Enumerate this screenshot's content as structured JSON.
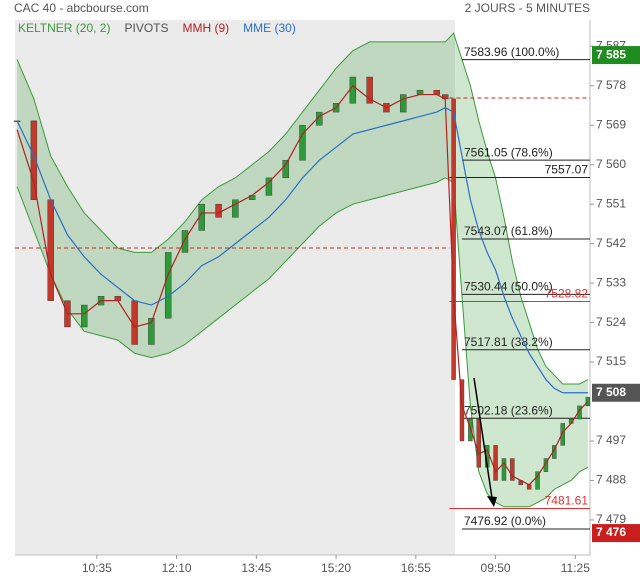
{
  "chart_data": {
    "type": "candlestick",
    "title": "CAC 40 - abcbourse.com",
    "subtitle": "2 JOURS - 5 MINUTES",
    "x": [
      0,
      4,
      8,
      12,
      16,
      20,
      24,
      28,
      32,
      36,
      40,
      44,
      48,
      52,
      56,
      60,
      64,
      68,
      72,
      76,
      80,
      84,
      88,
      92,
      96,
      100,
      102,
      104,
      106,
      108,
      110,
      112,
      114,
      116,
      118,
      120,
      122,
      124,
      126,
      128,
      130,
      132,
      134,
      136
    ],
    "xlim": [
      -0.5,
      136.5
    ],
    "xticks": [
      {
        "value": 19,
        "label": "10:35"
      },
      {
        "value": 38,
        "label": "12:10"
      },
      {
        "value": 57,
        "label": "13:45"
      },
      {
        "value": 76,
        "label": "15:20"
      },
      {
        "value": 95,
        "label": "16:55"
      },
      {
        "value": 114,
        "label": "09:50"
      },
      {
        "value": 133,
        "label": "11:25"
      }
    ],
    "ylim": [
      7471,
      7593
    ],
    "yticks": [
      {
        "value": 7587,
        "label": "7 587"
      },
      {
        "value": 7578,
        "label": "7 578"
      },
      {
        "value": 7569,
        "label": "7 569"
      },
      {
        "value": 7560,
        "label": "7 560"
      },
      {
        "value": 7551,
        "label": "7 551"
      },
      {
        "value": 7542,
        "label": "7 542"
      },
      {
        "value": 7533,
        "label": "7 533"
      },
      {
        "value": 7524,
        "label": "7 524"
      },
      {
        "value": 7515,
        "label": "7 515"
      },
      {
        "value": 7497,
        "label": "7 497"
      },
      {
        "value": 7488,
        "label": "7 488"
      },
      {
        "value": 7479,
        "label": "7 479"
      }
    ],
    "session_break": 103,
    "candles": {
      "up_color": "#2f9a3a",
      "down_color": "#c0392b",
      "values": [
        7570,
        7552,
        7529,
        7523,
        7528,
        7530,
        7529,
        7519,
        7525,
        7540,
        7545,
        7551,
        7548,
        7552,
        7553,
        7557,
        7561,
        7569,
        7572,
        7574,
        7580,
        7574,
        7572,
        7576,
        7577,
        7576,
        7575,
        7511,
        7497,
        7502,
        7491,
        7496,
        7488,
        7493,
        7488,
        7487,
        7486,
        7490,
        7493,
        7496,
        7501,
        7502,
        7505,
        7507
      ]
    },
    "keltner": {
      "name": "KELTNER (20, 2)",
      "color": "#3c9a3c",
      "fill": "rgba(80,170,80,0.28)",
      "upper": [
        7584,
        7575,
        7562,
        7555,
        7549,
        7545,
        7541,
        7540,
        7540,
        7543,
        7547,
        7552,
        7555,
        7557,
        7560,
        7563,
        7567,
        7572,
        7577,
        7582,
        7586,
        7588,
        7588,
        7588,
        7588,
        7588,
        7588,
        7590,
        7584,
        7578,
        7570,
        7563,
        7557,
        7548,
        7538,
        7530,
        7524,
        7518,
        7514,
        7512,
        7510,
        7510,
        7510,
        7511
      ],
      "lower": [
        7555,
        7545,
        7535,
        7527,
        7522,
        7521,
        7520,
        7517,
        7516,
        7517,
        7519,
        7522,
        7525,
        7528,
        7531,
        7534,
        7538,
        7542,
        7546,
        7549,
        7551,
        7552,
        7553,
        7554,
        7555,
        7556,
        7557,
        7556,
        7530,
        7505,
        7490,
        7485,
        7483,
        7482,
        7482,
        7482,
        7482,
        7483,
        7484,
        7486,
        7487,
        7488,
        7490,
        7491
      ]
    },
    "pivots": {
      "name": "PIVOTS",
      "color": "#d22",
      "levels": [
        {
          "value": 7541,
          "from": -0.5,
          "to": 103
        },
        {
          "value": 7575.2,
          "from": 103,
          "to": 136.5
        }
      ]
    },
    "series": [
      {
        "name": "MMH (9)",
        "color": "#b22222",
        "values": [
          7568,
          7556,
          7535,
          7526,
          7526,
          7529,
          7529,
          7523,
          7524,
          7535,
          7543,
          7549,
          7549,
          7551,
          7553,
          7556,
          7560,
          7567,
          7571,
          7573,
          7578,
          7575,
          7573,
          7575,
          7576,
          7576,
          7575,
          7530,
          7505,
          7500,
          7494,
          7495,
          7490,
          7492,
          7489,
          7488,
          7487,
          7489,
          7492,
          7495,
          7499,
          7501,
          7504,
          7506
        ]
      },
      {
        "name": "MME (30)",
        "color": "#2a6fc9",
        "values": [
          7570,
          7562,
          7552,
          7544,
          7539,
          7535,
          7532,
          7529,
          7528,
          7530,
          7533,
          7537,
          7539,
          7542,
          7545,
          7548,
          7552,
          7557,
          7561,
          7564,
          7567,
          7568,
          7569,
          7570,
          7571,
          7572,
          7573,
          7572,
          7562,
          7552,
          7545,
          7540,
          7536,
          7530,
          7525,
          7521,
          7517,
          7514,
          7511,
          7509,
          7508,
          7508,
          7508,
          7508
        ]
      }
    ],
    "fibonacci": [
      {
        "value": 7583.96,
        "label": "7583.96 (100.0%)"
      },
      {
        "value": 7561.05,
        "label": "7561.05 (78.6%)"
      },
      {
        "value": 7543.07,
        "label": "7543.07 (61.8%)"
      },
      {
        "value": 7530.44,
        "label": "7530.44 (50.0%)"
      },
      {
        "value": 7517.81,
        "label": "7517.81 (38.2%)"
      },
      {
        "value": 7502.18,
        "label": "7502.18 (23.6%)"
      },
      {
        "value": 7476.92,
        "label": "7476.92 (0.0%)"
      }
    ],
    "fib_from": 106,
    "levels": [
      {
        "value": 7557.07,
        "color": "#222"
      },
      {
        "value": 7528.82,
        "color": "#e03030"
      },
      {
        "value": 7481.61,
        "color": "#e03030"
      }
    ],
    "badges": [
      {
        "value": 7585,
        "label": "7 585",
        "color": "#1e8c1e"
      },
      {
        "value": 7508,
        "label": "7 508",
        "color": "#555"
      },
      {
        "value": 7476,
        "label": "7 476",
        "color": "#c81e1e"
      }
    ]
  }
}
